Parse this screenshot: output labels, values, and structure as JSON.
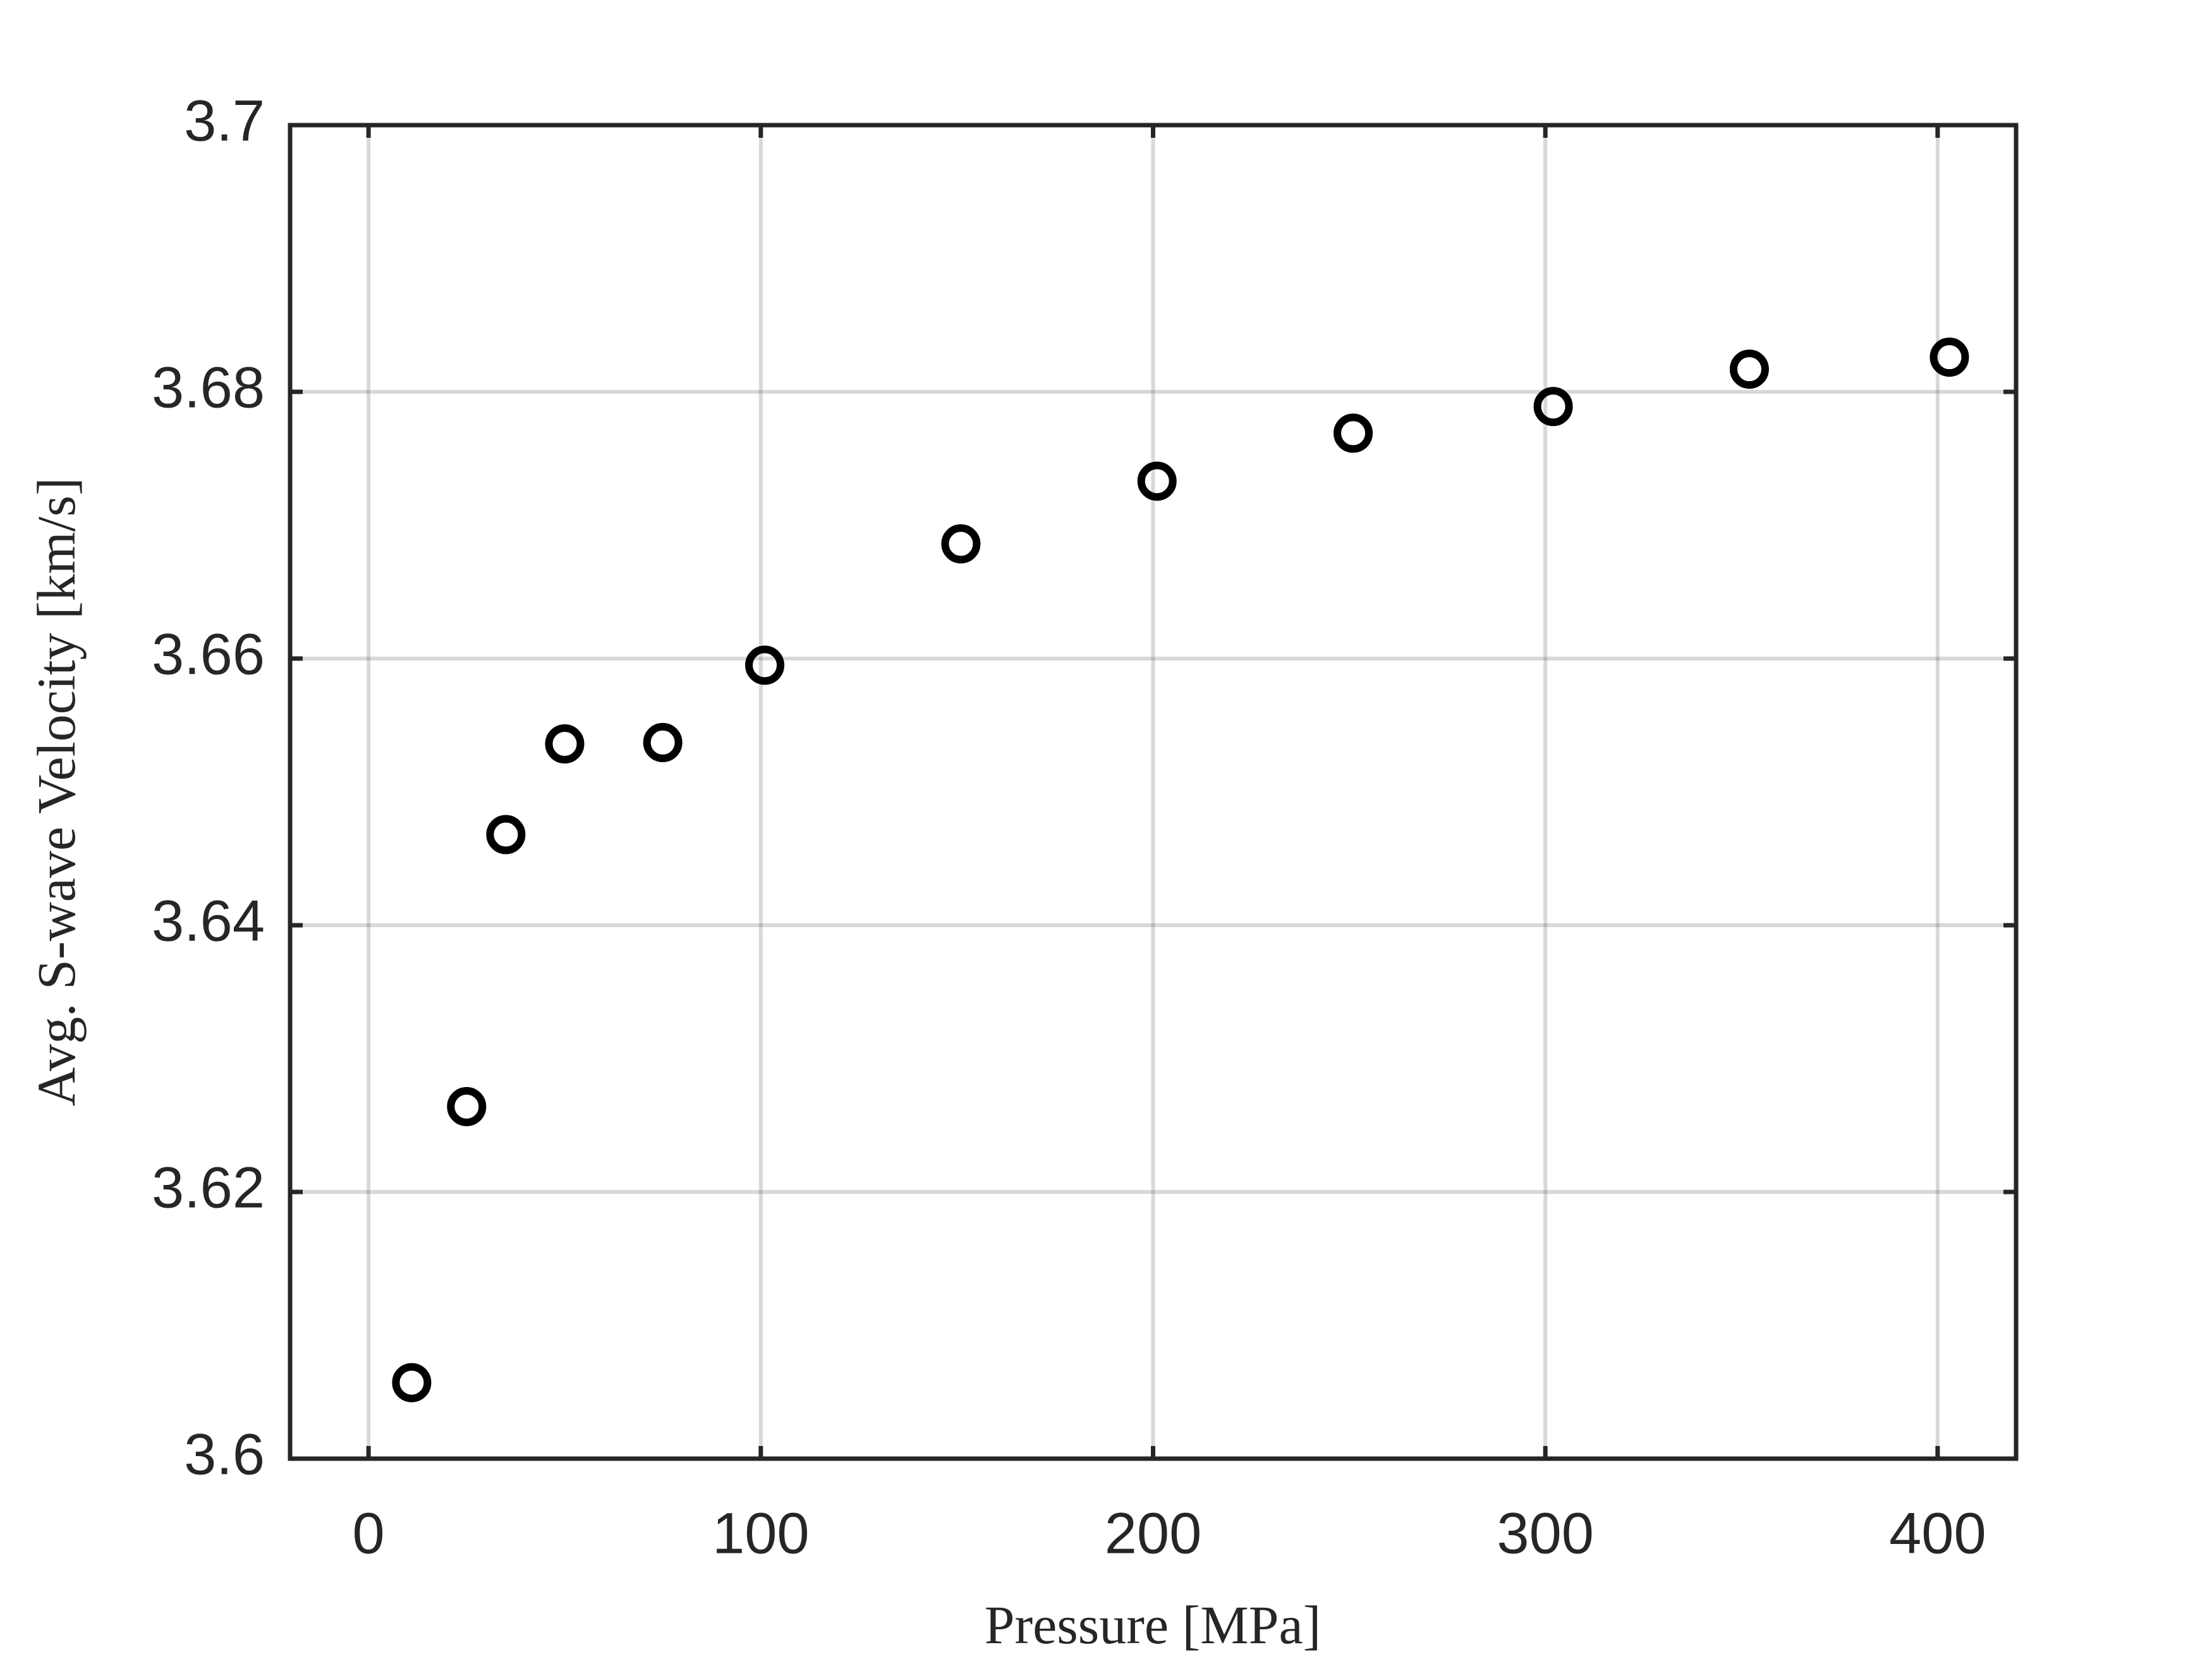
{
  "chart_data": {
    "type": "scatter",
    "xlabel": "Pressure [MPa]",
    "ylabel": "Avg. S-wave Velocity [km/s]",
    "x": [
      11,
      25,
      35,
      50,
      75,
      101,
      151,
      201,
      251,
      302,
      352,
      403
    ],
    "values": [
      3.6057,
      3.6264,
      3.6468,
      3.6536,
      3.6537,
      3.6595,
      3.6686,
      3.6733,
      3.6769,
      3.6789,
      3.6817,
      3.6826
    ],
    "color": "#000000",
    "xlim": [
      -20,
      420
    ],
    "xticks": [
      0,
      100,
      200,
      300,
      400
    ],
    "ylim": [
      3.6,
      3.7
    ],
    "yticks": [
      3.6,
      3.62,
      3.64,
      3.66,
      3.68,
      3.7
    ],
    "grid": true
  }
}
